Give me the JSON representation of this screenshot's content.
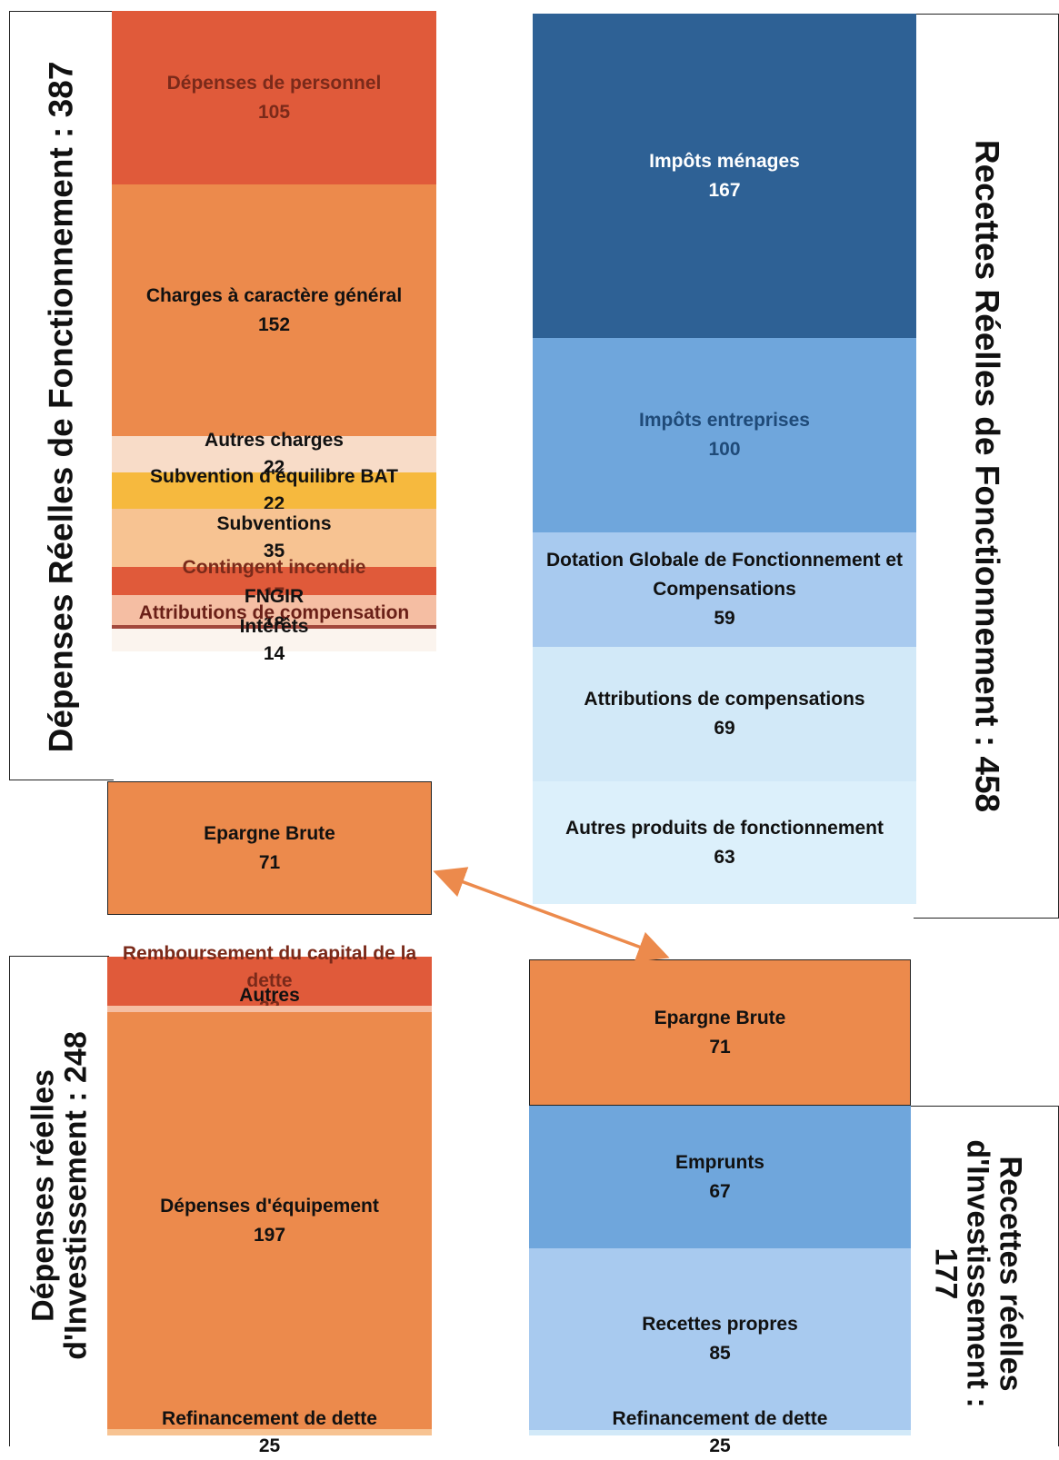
{
  "chart_data": [
    {
      "type": "stacked-block",
      "title": "Dépenses Réelles de Fonctionnement : 387",
      "blocks": [
        {
          "label": "Dépenses de personnel",
          "value": 105,
          "color": "#e05a3a",
          "text_color": "#7a2a1a"
        },
        {
          "label": "Charges à caractère général",
          "value": 152,
          "color": "#ec8a4c",
          "text_color": "#111111"
        },
        {
          "label": "Autres charges",
          "value": 22,
          "color": "#f8dcc8",
          "text_color": "#111111"
        },
        {
          "label": "Subvention d'équilibre BAT",
          "value": 22,
          "color": "#f6b93e",
          "text_color": "#111111"
        },
        {
          "label": "Subventions",
          "value": 35,
          "color": "#f7c392",
          "text_color": "#111111"
        },
        {
          "label": "Contingent incendie",
          "value": 17,
          "color": "#e05a3a",
          "text_color": "#7a2a1a"
        },
        {
          "label": "FNGIR",
          "value": 18,
          "color": "#f5bea3",
          "text_color": "#111111"
        },
        {
          "label": "Attributions de compensation",
          "value": 2,
          "color": "#a2483c",
          "text_color": "#6a2018"
        },
        {
          "label": "Intérêts",
          "value": 14,
          "color": "#fbf4ee",
          "text_color": "#111111"
        }
      ]
    },
    {
      "type": "stacked-block",
      "title": "Epargne Brute",
      "blocks": [
        {
          "label": "Epargne Brute",
          "value": 71,
          "color": "#ec8a4c",
          "text_color": "#111111"
        }
      ]
    },
    {
      "type": "stacked-block",
      "title": "Recettes Réelles de Fonctionnement : 458",
      "blocks": [
        {
          "label": "Impôts ménages",
          "value": 167,
          "color": "#2e6195",
          "text_color": "#ffffff"
        },
        {
          "label": "Impôts entreprises",
          "value": 100,
          "color": "#6fa6dc",
          "text_color": "#1f4a78"
        },
        {
          "label": "Dotation Globale de Fonctionnement et Compensations",
          "value": 59,
          "color": "#a8caef",
          "text_color": "#111111"
        },
        {
          "label": "Attributions de compensations",
          "value": 69,
          "color": "#d2e9f8",
          "text_color": "#111111"
        },
        {
          "label": "Autres produits de fonctionnement",
          "value": 63,
          "color": "#dcf0fb",
          "text_color": "#111111"
        }
      ]
    },
    {
      "type": "stacked-block",
      "title": "Dépenses réelles d'Investissement : 248",
      "blocks": [
        {
          "label": "Remboursement du capital de la dette",
          "value": 23,
          "color": "#e05a3a",
          "text_color": "#7a2a1a"
        },
        {
          "label": "Autres",
          "value": 3,
          "color": "#f5bea3",
          "text_color": "#111111"
        },
        {
          "label": "Dépenses d'équipement",
          "value": 197,
          "color": "#ec8a4c",
          "text_color": "#111111"
        },
        {
          "label": "Refinancement de dette",
          "value": 25,
          "color": "#f7c392",
          "text_color": "#111111"
        }
      ]
    },
    {
      "type": "stacked-block",
      "title": "Epargne Brute",
      "blocks": [
        {
          "label": "Epargne Brute",
          "value": 71,
          "color": "#ec8a4c",
          "text_color": "#111111"
        }
      ]
    },
    {
      "type": "stacked-block",
      "title": "Recettes réelles d'Investissement : 177",
      "blocks": [
        {
          "label": "Emprunts",
          "value": 67,
          "color": "#6fa6dc",
          "text_color": "#111111"
        },
        {
          "label": "Recettes propres",
          "value": 85,
          "color": "#a8caef",
          "text_color": "#111111"
        },
        {
          "label": "Refinancement de dette",
          "value": 25,
          "color": "#d2e9f8",
          "text_color": "#111111"
        }
      ]
    }
  ],
  "titles": {
    "drf": "Dépenses Réelles de Fonctionnement : 387",
    "rrf": "Recettes Réelles de Fonctionnement : 458",
    "dri_line1": "Dépenses réelles",
    "dri_line2": "d'Investissement : 248",
    "rri_line1": "Recettes réelles",
    "rri_line2": "d'Investissement :",
    "rri_line3": "177"
  },
  "colors": {
    "arrow": "#ec8a4c",
    "border": "#222222"
  }
}
